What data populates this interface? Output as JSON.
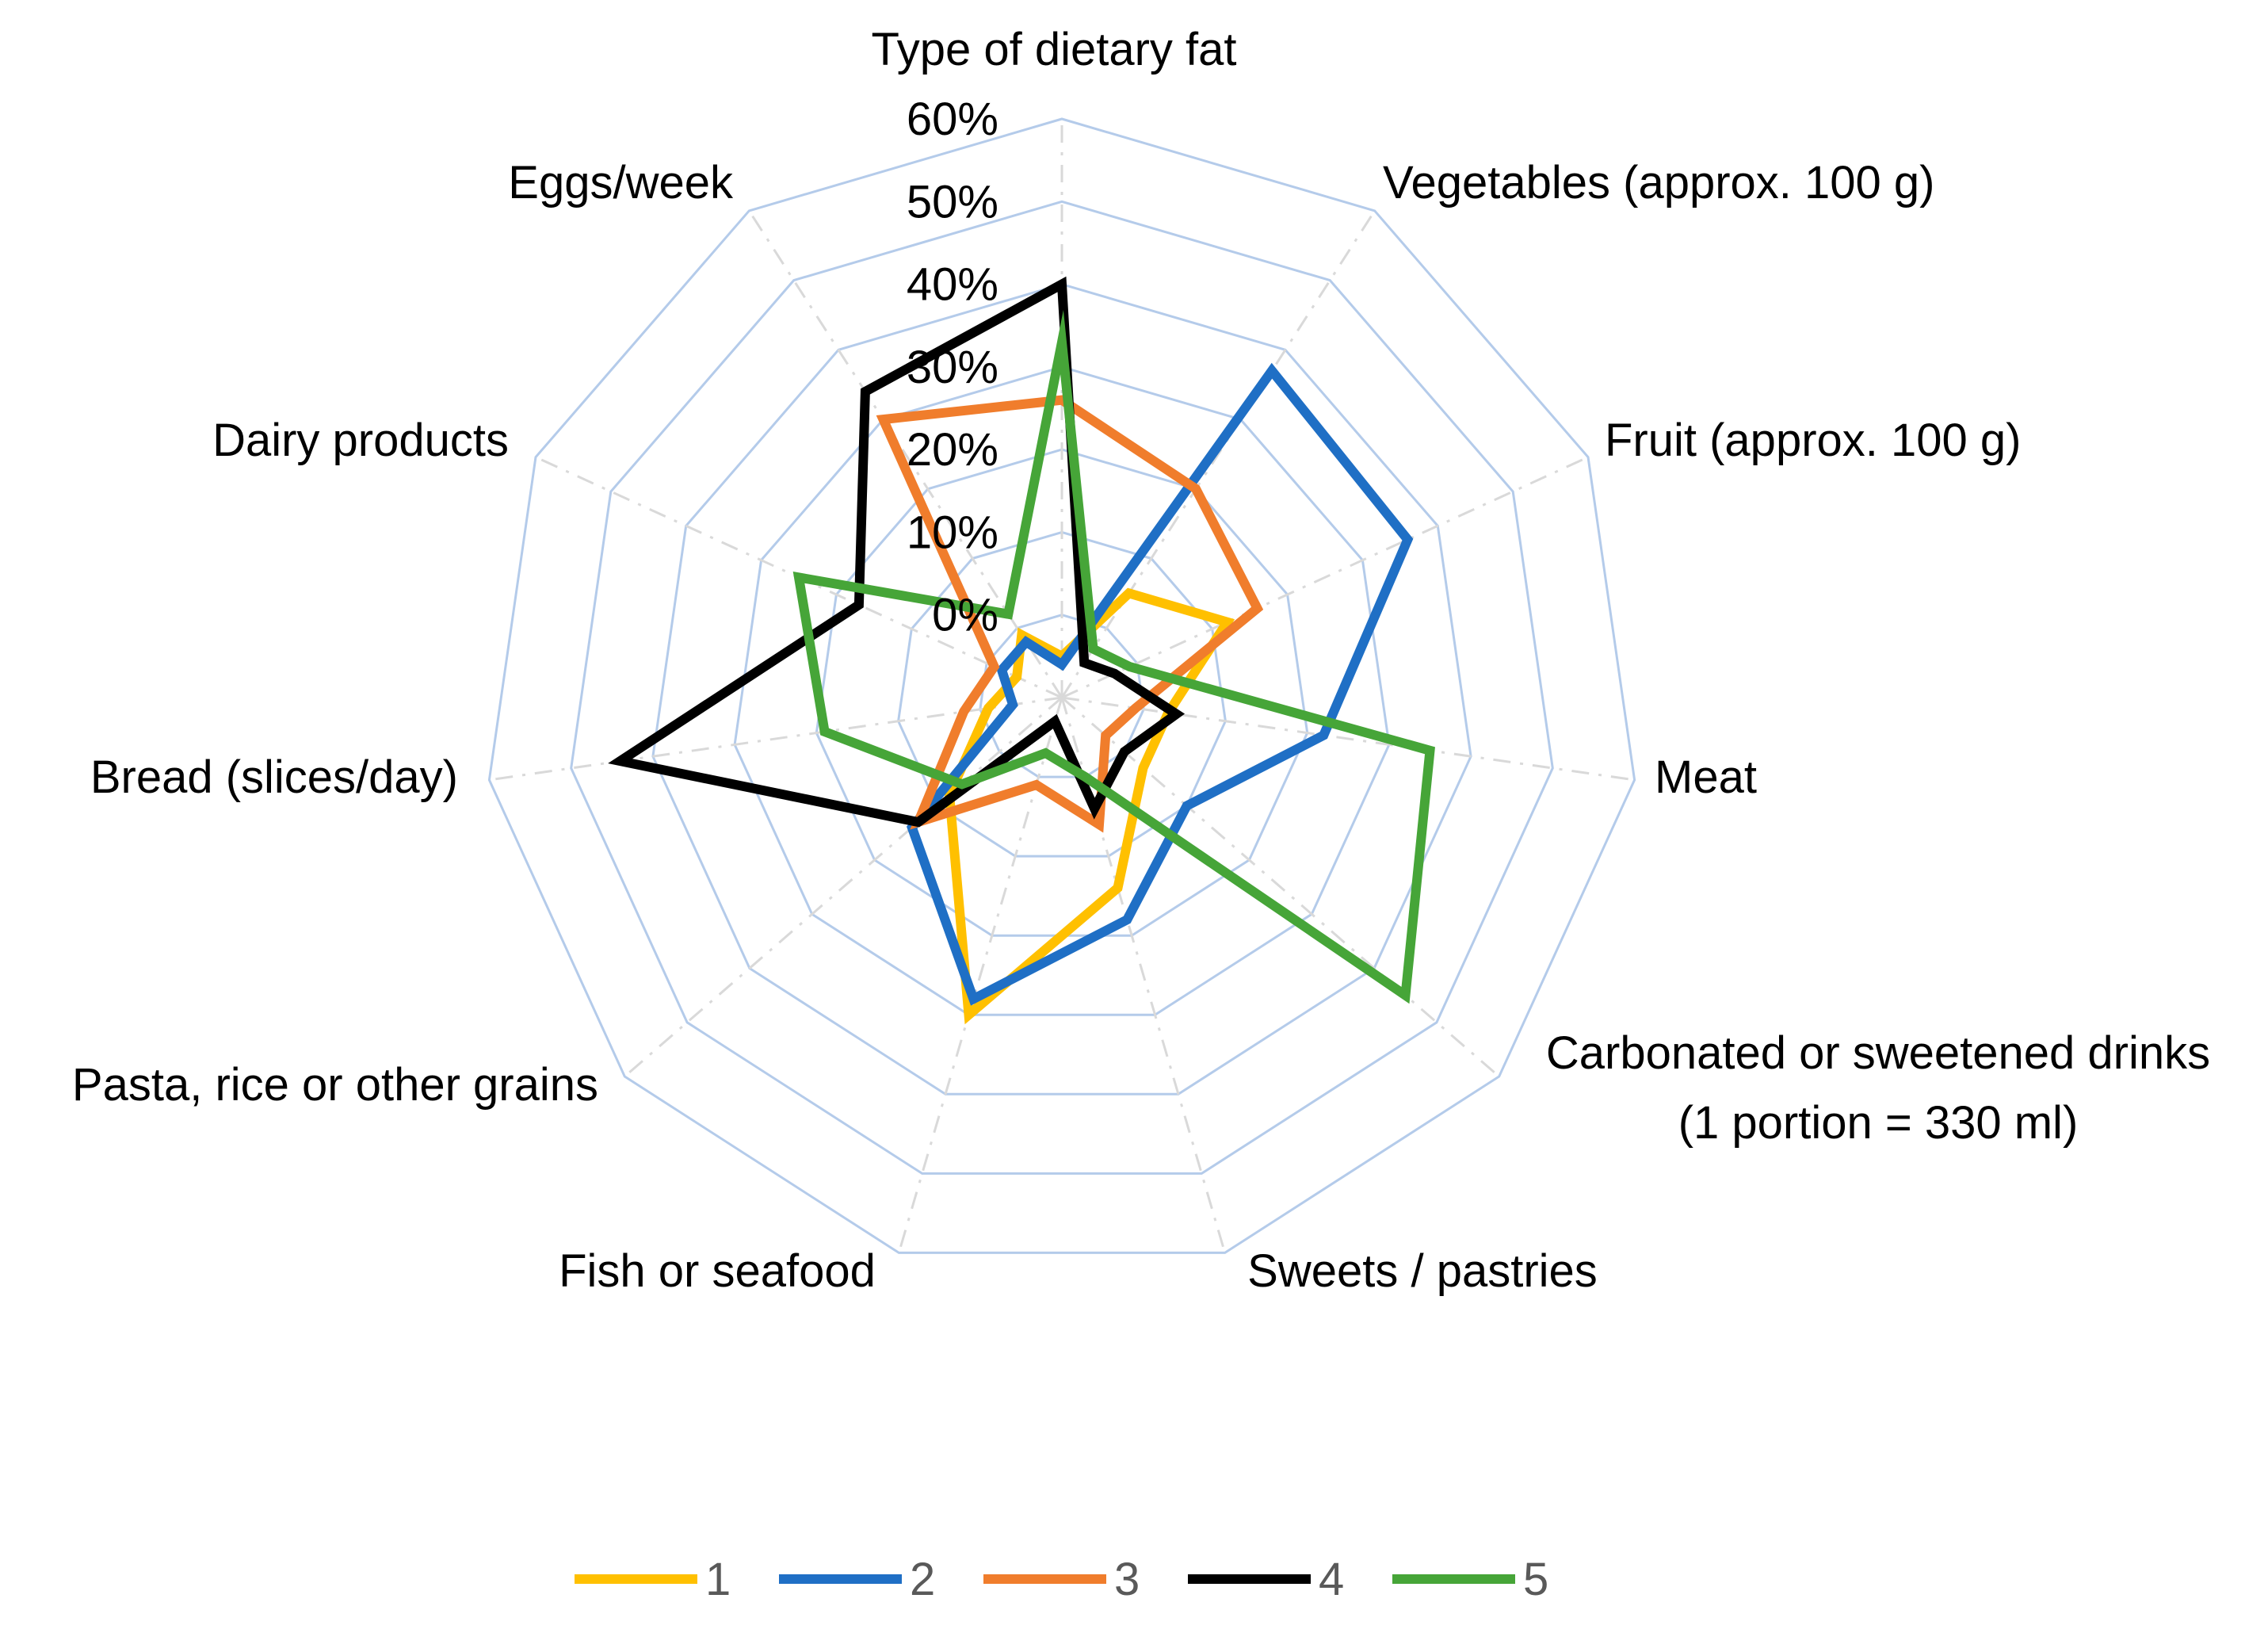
{
  "chart_data": {
    "type": "radar",
    "title": "",
    "axes": [
      "Type of dietary fat",
      "Vegetables (approx. 100 g)",
      "Fruit (approx. 100 g)",
      "Meat",
      "Carbonated or sweetened drinks (1 portion = 330 ml)",
      "Sweets / pastries",
      "Fish or seafood",
      "Pasta, rice or other grains",
      "Bread (slices/day)",
      "Dairy products",
      "Eggs/week"
    ],
    "axis_label_lines": [
      [
        "Type of dietary fat"
      ],
      [
        "Vegetables (approx. 100 g)"
      ],
      [
        "Fruit (approx. 100 g)"
      ],
      [
        "Meat"
      ],
      [
        "Carbonated or sweetened drinks",
        "(1 portion = 330 ml)"
      ],
      [
        "Sweets / pastries"
      ],
      [
        "Fish or seafood"
      ],
      [
        "Pasta, rice or other grains"
      ],
      [
        "Bread (slices/day)"
      ],
      [
        "Dairy products"
      ],
      [
        "Eggs/week"
      ]
    ],
    "rmin": -10,
    "rmax": 60,
    "ticks": [
      0,
      10,
      20,
      30,
      40,
      50,
      60
    ],
    "tick_labels": [
      "0%",
      "10%",
      "20%",
      "30%",
      "40%",
      "50%",
      "60%"
    ],
    "series": [
      {
        "name": "1",
        "color": "#FFC000",
        "values": [
          -5,
          5,
          12,
          3,
          3,
          14,
          30,
          8,
          -1,
          -4,
          -1
        ]
      },
      {
        "name": "2",
        "color": "#1F6FC5",
        "values": [
          -6,
          37,
          36,
          22,
          10,
          18,
          28,
          14,
          -4,
          -2,
          -2
        ]
      },
      {
        "name": "3",
        "color": "#F07D2C",
        "values": [
          26,
          20,
          16,
          -1,
          -3,
          6,
          1,
          13,
          2,
          -1,
          30
        ]
      },
      {
        "name": "4",
        "color": "#000000",
        "values": [
          40,
          -5,
          -3,
          4,
          0,
          4,
          -7,
          13,
          44,
          17,
          34
        ]
      },
      {
        "name": "5",
        "color": "#46A538",
        "values": [
          33,
          -3,
          -1,
          35,
          45,
          0,
          -3,
          6,
          19,
          25,
          2
        ]
      }
    ],
    "legend": {
      "position": "bottom",
      "entries": [
        "1",
        "2",
        "3",
        "4",
        "5"
      ]
    },
    "grid": true
  }
}
